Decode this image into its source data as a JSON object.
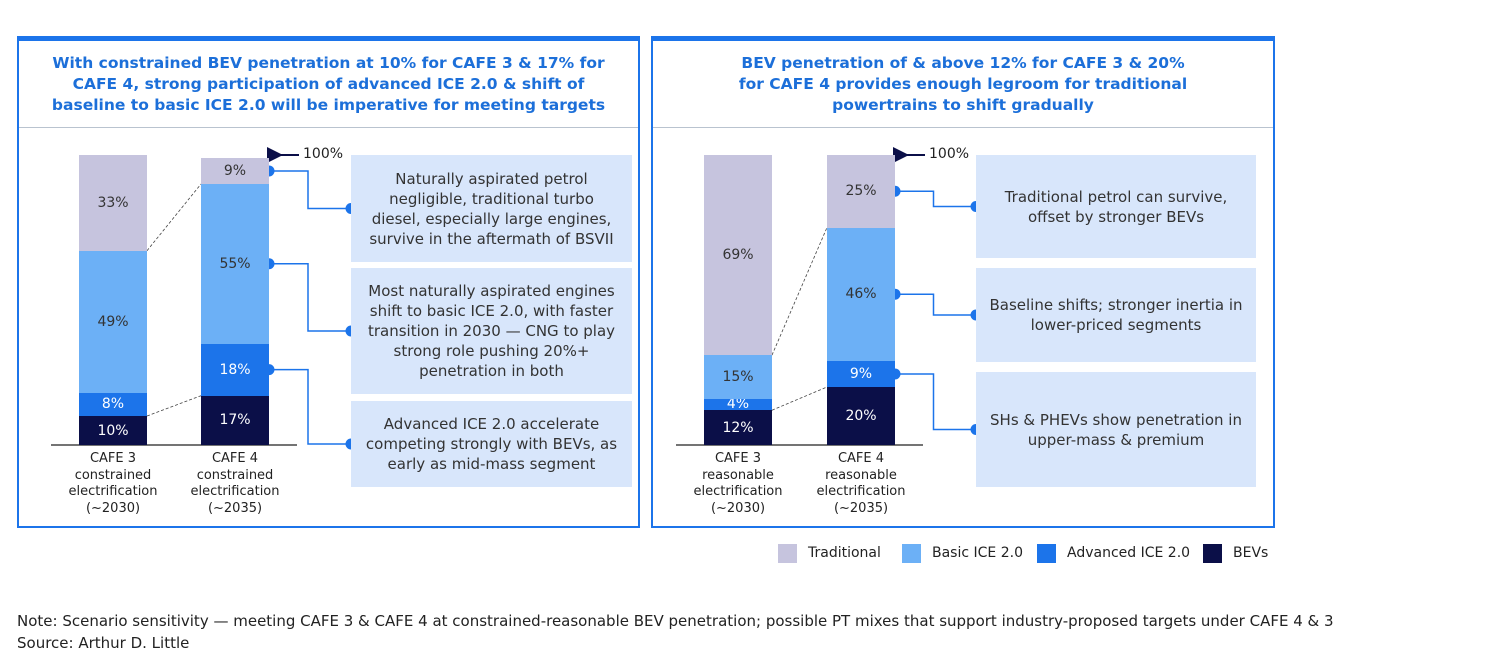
{
  "chart_data": [
    {
      "type": "stacked_bar",
      "title": "With constrained BEV penetration at 10% for CAFE 3 & 17% for CAFE 4, strong participation of advanced ICE 2.0 & shift of baseline to basic ICE 2.0 will be imperative for meeting targets",
      "categories": [
        "CAFE 3 constrained electrification (~2030)",
        "CAFE 4 constrained electrification (~2035)"
      ],
      "series": [
        {
          "name": "Traditional",
          "color": "#c6c4de",
          "values": [
            33,
            9
          ],
          "value_labels": [
            "33%",
            "9%"
          ]
        },
        {
          "name": "Basic ICE 2.0",
          "color": "#6cb0f6",
          "values": [
            49,
            55
          ],
          "value_labels": [
            "49%",
            "55%"
          ]
        },
        {
          "name": "Advanced ICE 2.0",
          "color": "#1c74ea",
          "values": [
            8,
            18
          ],
          "value_labels": [
            "8%",
            "18%"
          ]
        },
        {
          "name": "BEVs",
          "color": "#0b0f48",
          "values": [
            10,
            17
          ],
          "value_labels": [
            "10%",
            "17%"
          ]
        }
      ],
      "ylim": [
        0,
        100
      ],
      "yticks": [
        {
          "value": 100,
          "label": "100%"
        }
      ],
      "callouts": [
        "Naturally aspirated petrol negligible, traditional turbo diesel, especially large engines, survive in the aftermath of BSVII",
        "Most naturally aspirated engines shift to basic ICE 2.0, with faster transition in 2030 — CNG to play strong role pushing 20%+ penetration in both",
        "Advanced ICE 2.0 accelerate competing strongly with BEVs, as early as mid-mass segment"
      ]
    },
    {
      "type": "stacked_bar",
      "title": "BEV penetration of & above 12% for CAFE 3 & 20% for CAFE 4 provides enough legroom for traditional powertrains to shift gradually",
      "categories": [
        "CAFE 3 reasonable electrification (~2030)",
        "CAFE 4 reasonable electrification (~2035)"
      ],
      "series": [
        {
          "name": "Traditional",
          "color": "#c6c4de",
          "values": [
            69,
            25
          ],
          "value_labels": [
            "69%",
            "25%"
          ]
        },
        {
          "name": "Basic ICE 2.0",
          "color": "#6cb0f6",
          "values": [
            15,
            46
          ],
          "value_labels": [
            "15%",
            "46%"
          ]
        },
        {
          "name": "Advanced ICE 2.0",
          "color": "#1c74ea",
          "values": [
            4,
            9
          ],
          "value_labels": [
            "4%",
            "9%"
          ]
        },
        {
          "name": "BEVs",
          "color": "#0b0f48",
          "values": [
            12,
            20
          ],
          "value_labels": [
            "12%",
            "20%"
          ]
        }
      ],
      "ylim": [
        0,
        100
      ],
      "yticks": [
        {
          "value": 100,
          "label": "100%"
        }
      ],
      "callouts": [
        "Traditional petrol can survive, offset by stronger BEVs",
        "Baseline shifts; stronger inertia in lower-priced segments",
        "SHs & PHEVs show penetration in upper-mass & premium"
      ]
    }
  ],
  "note": "Note: Scenario sensitivity — meeting CAFE 3 & CAFE 4 at constrained-reasonable BEV penetration; possible PT mixes that support industry-proposed targets under CAFE 4 & 3",
  "source": "Source: Arthur D. Little"
}
